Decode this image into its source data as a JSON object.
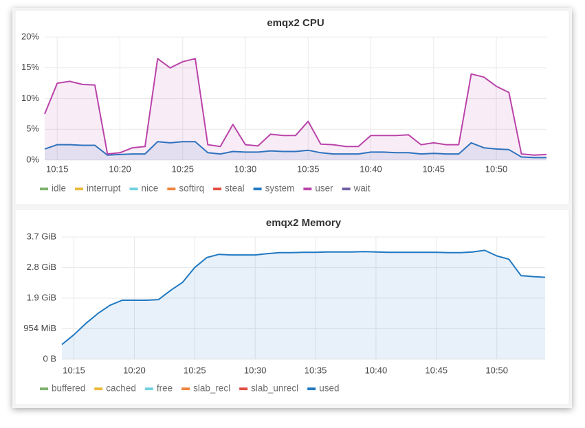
{
  "chart_data": [
    {
      "type": "line",
      "title": "emqx2 CPU",
      "x": [
        "10:14",
        "10:15",
        "10:16",
        "10:17",
        "10:18",
        "10:19",
        "10:20",
        "10:21",
        "10:22",
        "10:23",
        "10:24",
        "10:25",
        "10:26",
        "10:27",
        "10:28",
        "10:29",
        "10:30",
        "10:31",
        "10:32",
        "10:33",
        "10:34",
        "10:35",
        "10:36",
        "10:37",
        "10:38",
        "10:39",
        "10:40",
        "10:41",
        "10:42",
        "10:43",
        "10:44",
        "10:45",
        "10:46",
        "10:47",
        "10:48",
        "10:49",
        "10:50",
        "10:51",
        "10:52",
        "10:53",
        "10:54"
      ],
      "xlim": [
        "10:14",
        "10:54"
      ],
      "xticks": [
        "10:15",
        "10:20",
        "10:25",
        "10:30",
        "10:35",
        "10:40",
        "10:45",
        "10:50"
      ],
      "ylim": [
        0,
        20
      ],
      "yticks": [
        {
          "value": 0,
          "label": "0%"
        },
        {
          "value": 5,
          "label": "5%"
        },
        {
          "value": 10,
          "label": "10%"
        },
        {
          "value": 15,
          "label": "15%"
        },
        {
          "value": 20,
          "label": "20%"
        }
      ],
      "grid": true,
      "series": [
        {
          "name": "idle",
          "color": "#7eb26d",
          "values": [
            null,
            null,
            null,
            null,
            null,
            null,
            null,
            null,
            null,
            null,
            null,
            null,
            null,
            null,
            null,
            null,
            null,
            null,
            null,
            null,
            null,
            null,
            null,
            null,
            null,
            null,
            null,
            null,
            null,
            null,
            null,
            null,
            null,
            null,
            null,
            null,
            null,
            null,
            null,
            null,
            null
          ]
        },
        {
          "name": "interrupt",
          "color": "#eab839",
          "values": [
            null,
            null,
            null,
            null,
            null,
            null,
            null,
            null,
            null,
            null,
            null,
            null,
            null,
            null,
            null,
            null,
            null,
            null,
            null,
            null,
            null,
            null,
            null,
            null,
            null,
            null,
            null,
            null,
            null,
            null,
            null,
            null,
            null,
            null,
            null,
            null,
            null,
            null,
            null,
            null,
            null
          ]
        },
        {
          "name": "nice",
          "color": "#6ed0e0",
          "values": [
            null,
            null,
            null,
            null,
            null,
            null,
            null,
            null,
            null,
            null,
            null,
            null,
            null,
            null,
            null,
            null,
            null,
            null,
            null,
            null,
            null,
            null,
            null,
            null,
            null,
            null,
            null,
            null,
            null,
            null,
            null,
            null,
            null,
            null,
            null,
            null,
            null,
            null,
            null,
            null,
            null
          ]
        },
        {
          "name": "softirq",
          "color": "#ef843c",
          "values": [
            null,
            null,
            null,
            null,
            null,
            null,
            null,
            null,
            null,
            null,
            null,
            null,
            null,
            null,
            null,
            null,
            null,
            null,
            null,
            null,
            null,
            null,
            null,
            null,
            null,
            null,
            null,
            null,
            null,
            null,
            null,
            null,
            null,
            null,
            null,
            null,
            null,
            null,
            null,
            null,
            null
          ]
        },
        {
          "name": "steal",
          "color": "#e24d42",
          "values": [
            null,
            null,
            null,
            null,
            null,
            null,
            null,
            null,
            null,
            null,
            null,
            null,
            null,
            null,
            null,
            null,
            null,
            null,
            null,
            null,
            null,
            null,
            null,
            null,
            null,
            null,
            null,
            null,
            null,
            null,
            null,
            null,
            null,
            null,
            null,
            null,
            null,
            null,
            null,
            null,
            null
          ]
        },
        {
          "name": "system",
          "color": "#1f78c1",
          "values": [
            1.8,
            2.5,
            2.5,
            2.4,
            2.4,
            0.8,
            0.9,
            1,
            1,
            3,
            2.8,
            3,
            3,
            1.2,
            1,
            1.4,
            1.3,
            1.3,
            1.5,
            1.4,
            1.4,
            1.6,
            1.2,
            1,
            1,
            1,
            1.3,
            1.3,
            1.2,
            1.2,
            1,
            1.1,
            1,
            1,
            2.8,
            2,
            1.8,
            1.7,
            0.5,
            0.4,
            0.4
          ]
        },
        {
          "name": "user",
          "color": "#ba43a9",
          "values": [
            7.5,
            12.5,
            12.8,
            12.3,
            12.2,
            1,
            1.2,
            2,
            2.2,
            16.5,
            15,
            16,
            16.5,
            2.5,
            2.2,
            5.8,
            2.5,
            2.3,
            4.2,
            4,
            4,
            6.3,
            2.6,
            2.5,
            2.2,
            2.2,
            4,
            4,
            4,
            4.1,
            2.5,
            2.8,
            2.5,
            2.5,
            14,
            13.5,
            12,
            11,
            1,
            0.8,
            0.9
          ]
        },
        {
          "name": "wait",
          "color": "#705da0",
          "values": [
            null,
            null,
            null,
            null,
            null,
            null,
            null,
            null,
            null,
            null,
            null,
            null,
            null,
            null,
            null,
            null,
            null,
            null,
            null,
            null,
            null,
            null,
            null,
            null,
            null,
            null,
            null,
            null,
            null,
            null,
            null,
            null,
            null,
            null,
            null,
            null,
            null,
            null,
            null,
            null,
            null
          ]
        }
      ]
    },
    {
      "type": "line",
      "title": "emqx2 Memory",
      "x": [
        "10:14",
        "10:15",
        "10:16",
        "10:17",
        "10:18",
        "10:19",
        "10:20",
        "10:21",
        "10:22",
        "10:23",
        "10:24",
        "10:25",
        "10:26",
        "10:27",
        "10:28",
        "10:29",
        "10:30",
        "10:31",
        "10:32",
        "10:33",
        "10:34",
        "10:35",
        "10:36",
        "10:37",
        "10:38",
        "10:39",
        "10:40",
        "10:41",
        "10:42",
        "10:43",
        "10:44",
        "10:45",
        "10:46",
        "10:47",
        "10:48",
        "10:49",
        "10:50",
        "10:51",
        "10:52",
        "10:53",
        "10:54"
      ],
      "xlim": [
        "10:14",
        "10:54"
      ],
      "xticks": [
        "10:15",
        "10:20",
        "10:25",
        "10:30",
        "10:35",
        "10:40",
        "10:45",
        "10:50"
      ],
      "ylim": [
        0,
        3.7266
      ],
      "yticks": [
        {
          "value": 0,
          "label": "0 B"
        },
        {
          "value": 0.9316,
          "label": "954 MiB"
        },
        {
          "value": 1.8633,
          "label": "1.9 GiB"
        },
        {
          "value": 2.7949,
          "label": "2.8 GiB"
        },
        {
          "value": 3.7266,
          "label": "3.7 GiB"
        }
      ],
      "grid": true,
      "series": [
        {
          "name": "buffered",
          "color": "#7eb26d",
          "values": [
            null,
            null,
            null,
            null,
            null,
            null,
            null,
            null,
            null,
            null,
            null,
            null,
            null,
            null,
            null,
            null,
            null,
            null,
            null,
            null,
            null,
            null,
            null,
            null,
            null,
            null,
            null,
            null,
            null,
            null,
            null,
            null,
            null,
            null,
            null,
            null,
            null,
            null,
            null,
            null,
            null
          ]
        },
        {
          "name": "cached",
          "color": "#eab839",
          "values": [
            null,
            null,
            null,
            null,
            null,
            null,
            null,
            null,
            null,
            null,
            null,
            null,
            null,
            null,
            null,
            null,
            null,
            null,
            null,
            null,
            null,
            null,
            null,
            null,
            null,
            null,
            null,
            null,
            null,
            null,
            null,
            null,
            null,
            null,
            null,
            null,
            null,
            null,
            null,
            null,
            null
          ]
        },
        {
          "name": "free",
          "color": "#6ed0e0",
          "values": [
            null,
            null,
            null,
            null,
            null,
            null,
            null,
            null,
            null,
            null,
            null,
            null,
            null,
            null,
            null,
            null,
            null,
            null,
            null,
            null,
            null,
            null,
            null,
            null,
            null,
            null,
            null,
            null,
            null,
            null,
            null,
            null,
            null,
            null,
            null,
            null,
            null,
            null,
            null,
            null,
            null
          ]
        },
        {
          "name": "slab_recl",
          "color": "#ef843c",
          "values": [
            null,
            null,
            null,
            null,
            null,
            null,
            null,
            null,
            null,
            null,
            null,
            null,
            null,
            null,
            null,
            null,
            null,
            null,
            null,
            null,
            null,
            null,
            null,
            null,
            null,
            null,
            null,
            null,
            null,
            null,
            null,
            null,
            null,
            null,
            null,
            null,
            null,
            null,
            null,
            null,
            null
          ]
        },
        {
          "name": "slab_unrecl",
          "color": "#e24d42",
          "values": [
            null,
            null,
            null,
            null,
            null,
            null,
            null,
            null,
            null,
            null,
            null,
            null,
            null,
            null,
            null,
            null,
            null,
            null,
            null,
            null,
            null,
            null,
            null,
            null,
            null,
            null,
            null,
            null,
            null,
            null,
            null,
            null,
            null,
            null,
            null,
            null,
            null,
            null,
            null,
            null,
            null
          ]
        },
        {
          "name": "used",
          "color": "#1f78c1",
          "values": [
            0.45,
            0.75,
            1.1,
            1.4,
            1.65,
            1.8,
            1.8,
            1.8,
            1.82,
            2.1,
            2.35,
            2.8,
            3.1,
            3.2,
            3.18,
            3.18,
            3.18,
            3.22,
            3.25,
            3.25,
            3.26,
            3.26,
            3.27,
            3.27,
            3.27,
            3.28,
            3.27,
            3.26,
            3.26,
            3.26,
            3.26,
            3.26,
            3.25,
            3.25,
            3.27,
            3.32,
            3.15,
            3.05,
            2.55,
            2.52,
            2.5
          ]
        }
      ]
    }
  ]
}
